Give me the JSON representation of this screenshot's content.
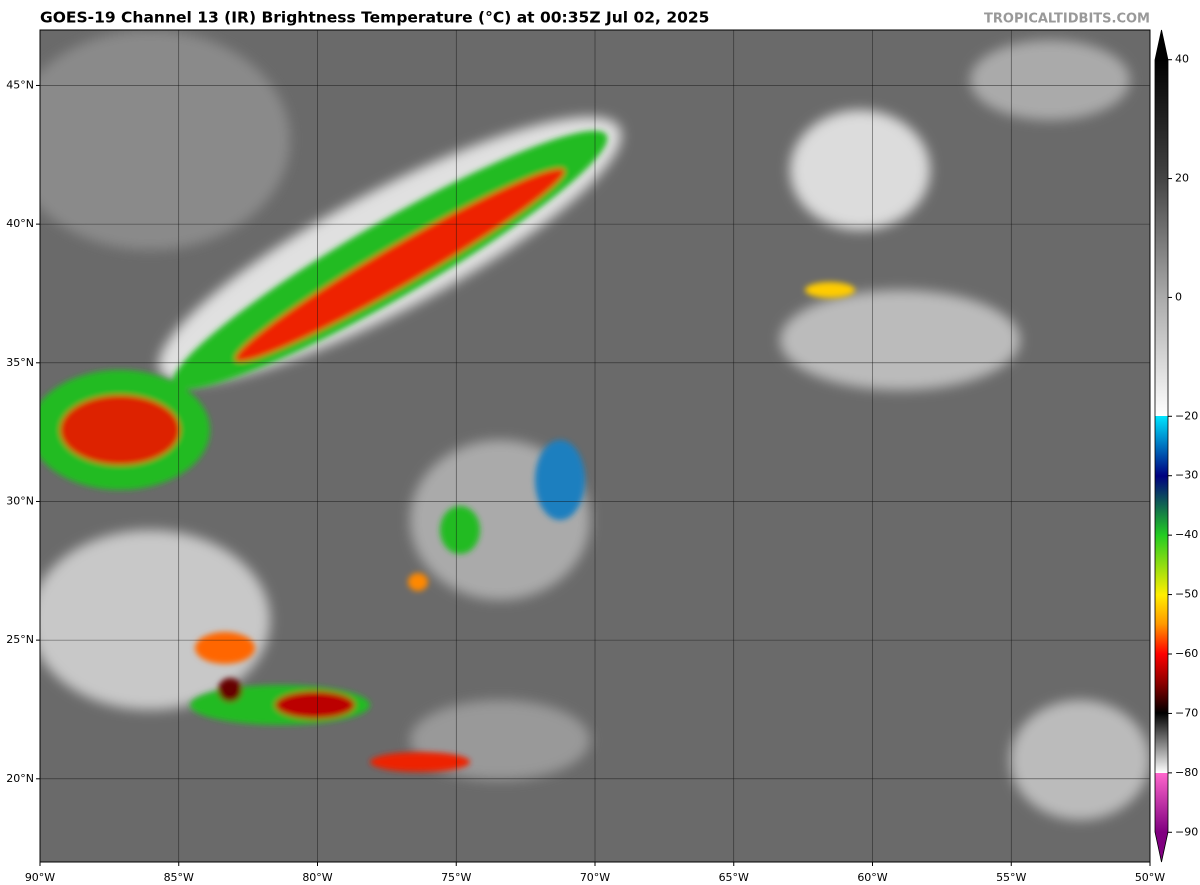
{
  "header": {
    "title": "GOES-19 Channel 13 (IR) Brightness Temperature (°C) at 00:35Z Jul 02, 2025",
    "watermark": "TROPICALTIDBITS.COM"
  },
  "map": {
    "lon_lim": [
      -90,
      -50
    ],
    "lat_lim": [
      17,
      47
    ],
    "lon_ticks": [
      {
        "value": -90,
        "label": "90°W"
      },
      {
        "value": -85,
        "label": "85°W"
      },
      {
        "value": -80,
        "label": "80°W"
      },
      {
        "value": -75,
        "label": "75°W"
      },
      {
        "value": -70,
        "label": "70°W"
      },
      {
        "value": -65,
        "label": "65°W"
      },
      {
        "value": -60,
        "label": "60°W"
      },
      {
        "value": -55,
        "label": "55°W"
      },
      {
        "value": -50,
        "label": "50°W"
      }
    ],
    "lat_ticks": [
      {
        "value": 20,
        "label": "20°N"
      },
      {
        "value": 25,
        "label": "25°N"
      },
      {
        "value": 30,
        "label": "30°N"
      },
      {
        "value": 35,
        "label": "35°N"
      },
      {
        "value": 40,
        "label": "40°N"
      },
      {
        "value": 45,
        "label": "45°N"
      }
    ]
  },
  "colorbar": {
    "lim": [
      -95,
      45
    ],
    "ticks": [
      40,
      20,
      0,
      {
        "value": -20,
        "label": "−20"
      },
      {
        "value": -30,
        "label": "−30"
      },
      {
        "value": -40,
        "label": "−40"
      },
      {
        "value": -50,
        "label": "−50"
      },
      {
        "value": -60,
        "label": "−60"
      },
      {
        "value": -70,
        "label": "−70"
      },
      {
        "value": -80,
        "label": "−80"
      },
      {
        "value": -90,
        "label": "−90"
      }
    ]
  }
}
